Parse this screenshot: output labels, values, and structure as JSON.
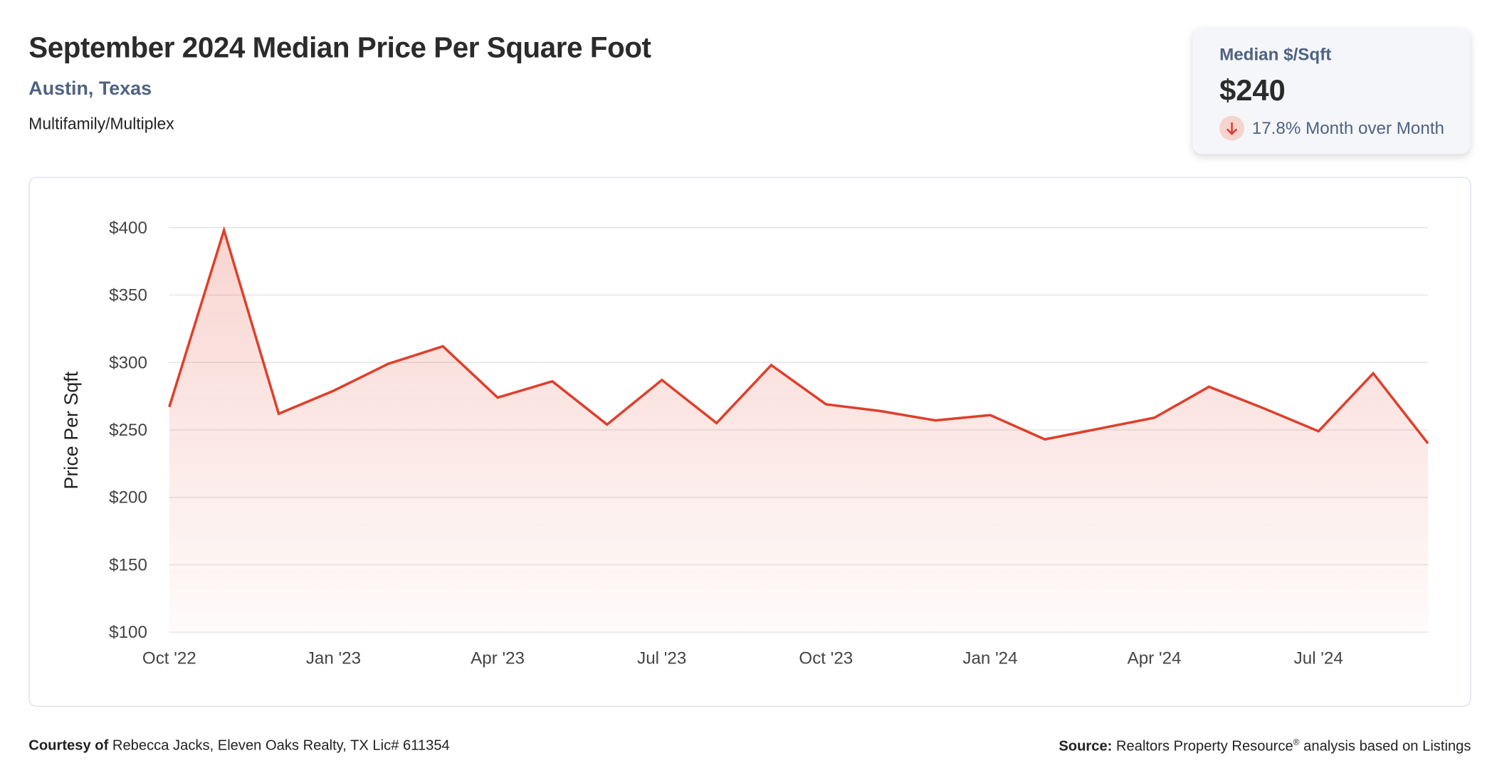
{
  "header": {
    "title": "September 2024 Median Price Per Square Foot",
    "location": "Austin, Texas",
    "property_type": "Multifamily/Multiplex"
  },
  "summary_card": {
    "label": "Median $/Sqft",
    "value": "$240",
    "change": "17.8% Month over Month",
    "direction_icon": "arrow-down-icon",
    "down_color": "#d63b2a"
  },
  "footer": {
    "courtesy_label": "Courtesy of",
    "courtesy_text": "Rebecca Jacks, Eleven Oaks Realty, TX Lic# 611354",
    "source_label": "Source:",
    "source_text": "Realtors Property Resource",
    "source_mark": "®",
    "source_suffix": " analysis based on Listings"
  },
  "chart_data": {
    "type": "area",
    "title": "September 2024 Median Price Per Square Foot",
    "xlabel": "",
    "ylabel": "Price Per Sqft",
    "ylim": [
      100,
      400
    ],
    "yticks": [
      100,
      150,
      200,
      250,
      300,
      350,
      400
    ],
    "ytick_labels": [
      "$100",
      "$150",
      "$200",
      "$250",
      "$300",
      "$350",
      "$400"
    ],
    "xtick_labels": [
      "Oct '22",
      "Jan '23",
      "Apr '23",
      "Jul '23",
      "Oct '23",
      "Jan '24",
      "Apr '24",
      "Jul '24"
    ],
    "xtick_index": [
      0,
      3,
      6,
      9,
      12,
      15,
      18,
      21
    ],
    "grid": true,
    "line_color": "#e03e2a",
    "x": [
      "Oct 2022",
      "Nov 2022",
      "Dec 2022",
      "Jan 2023",
      "Feb 2023",
      "Mar 2023",
      "Apr 2023",
      "May 2023",
      "Jun 2023",
      "Jul 2023",
      "Aug 2023",
      "Sep 2023",
      "Oct 2023",
      "Nov 2023",
      "Dec 2023",
      "Jan 2024",
      "Feb 2024",
      "Mar 2024",
      "Apr 2024",
      "May 2024",
      "Jun 2024",
      "Jul 2024",
      "Aug 2024",
      "Sep 2024"
    ],
    "series": [
      {
        "name": "Median $/Sqft",
        "values": [
          267,
          398,
          262,
          279,
          299,
          312,
          274,
          286,
          254,
          287,
          255,
          298,
          269,
          264,
          257,
          261,
          243,
          251,
          259,
          282,
          266,
          249,
          292,
          240
        ]
      }
    ]
  }
}
